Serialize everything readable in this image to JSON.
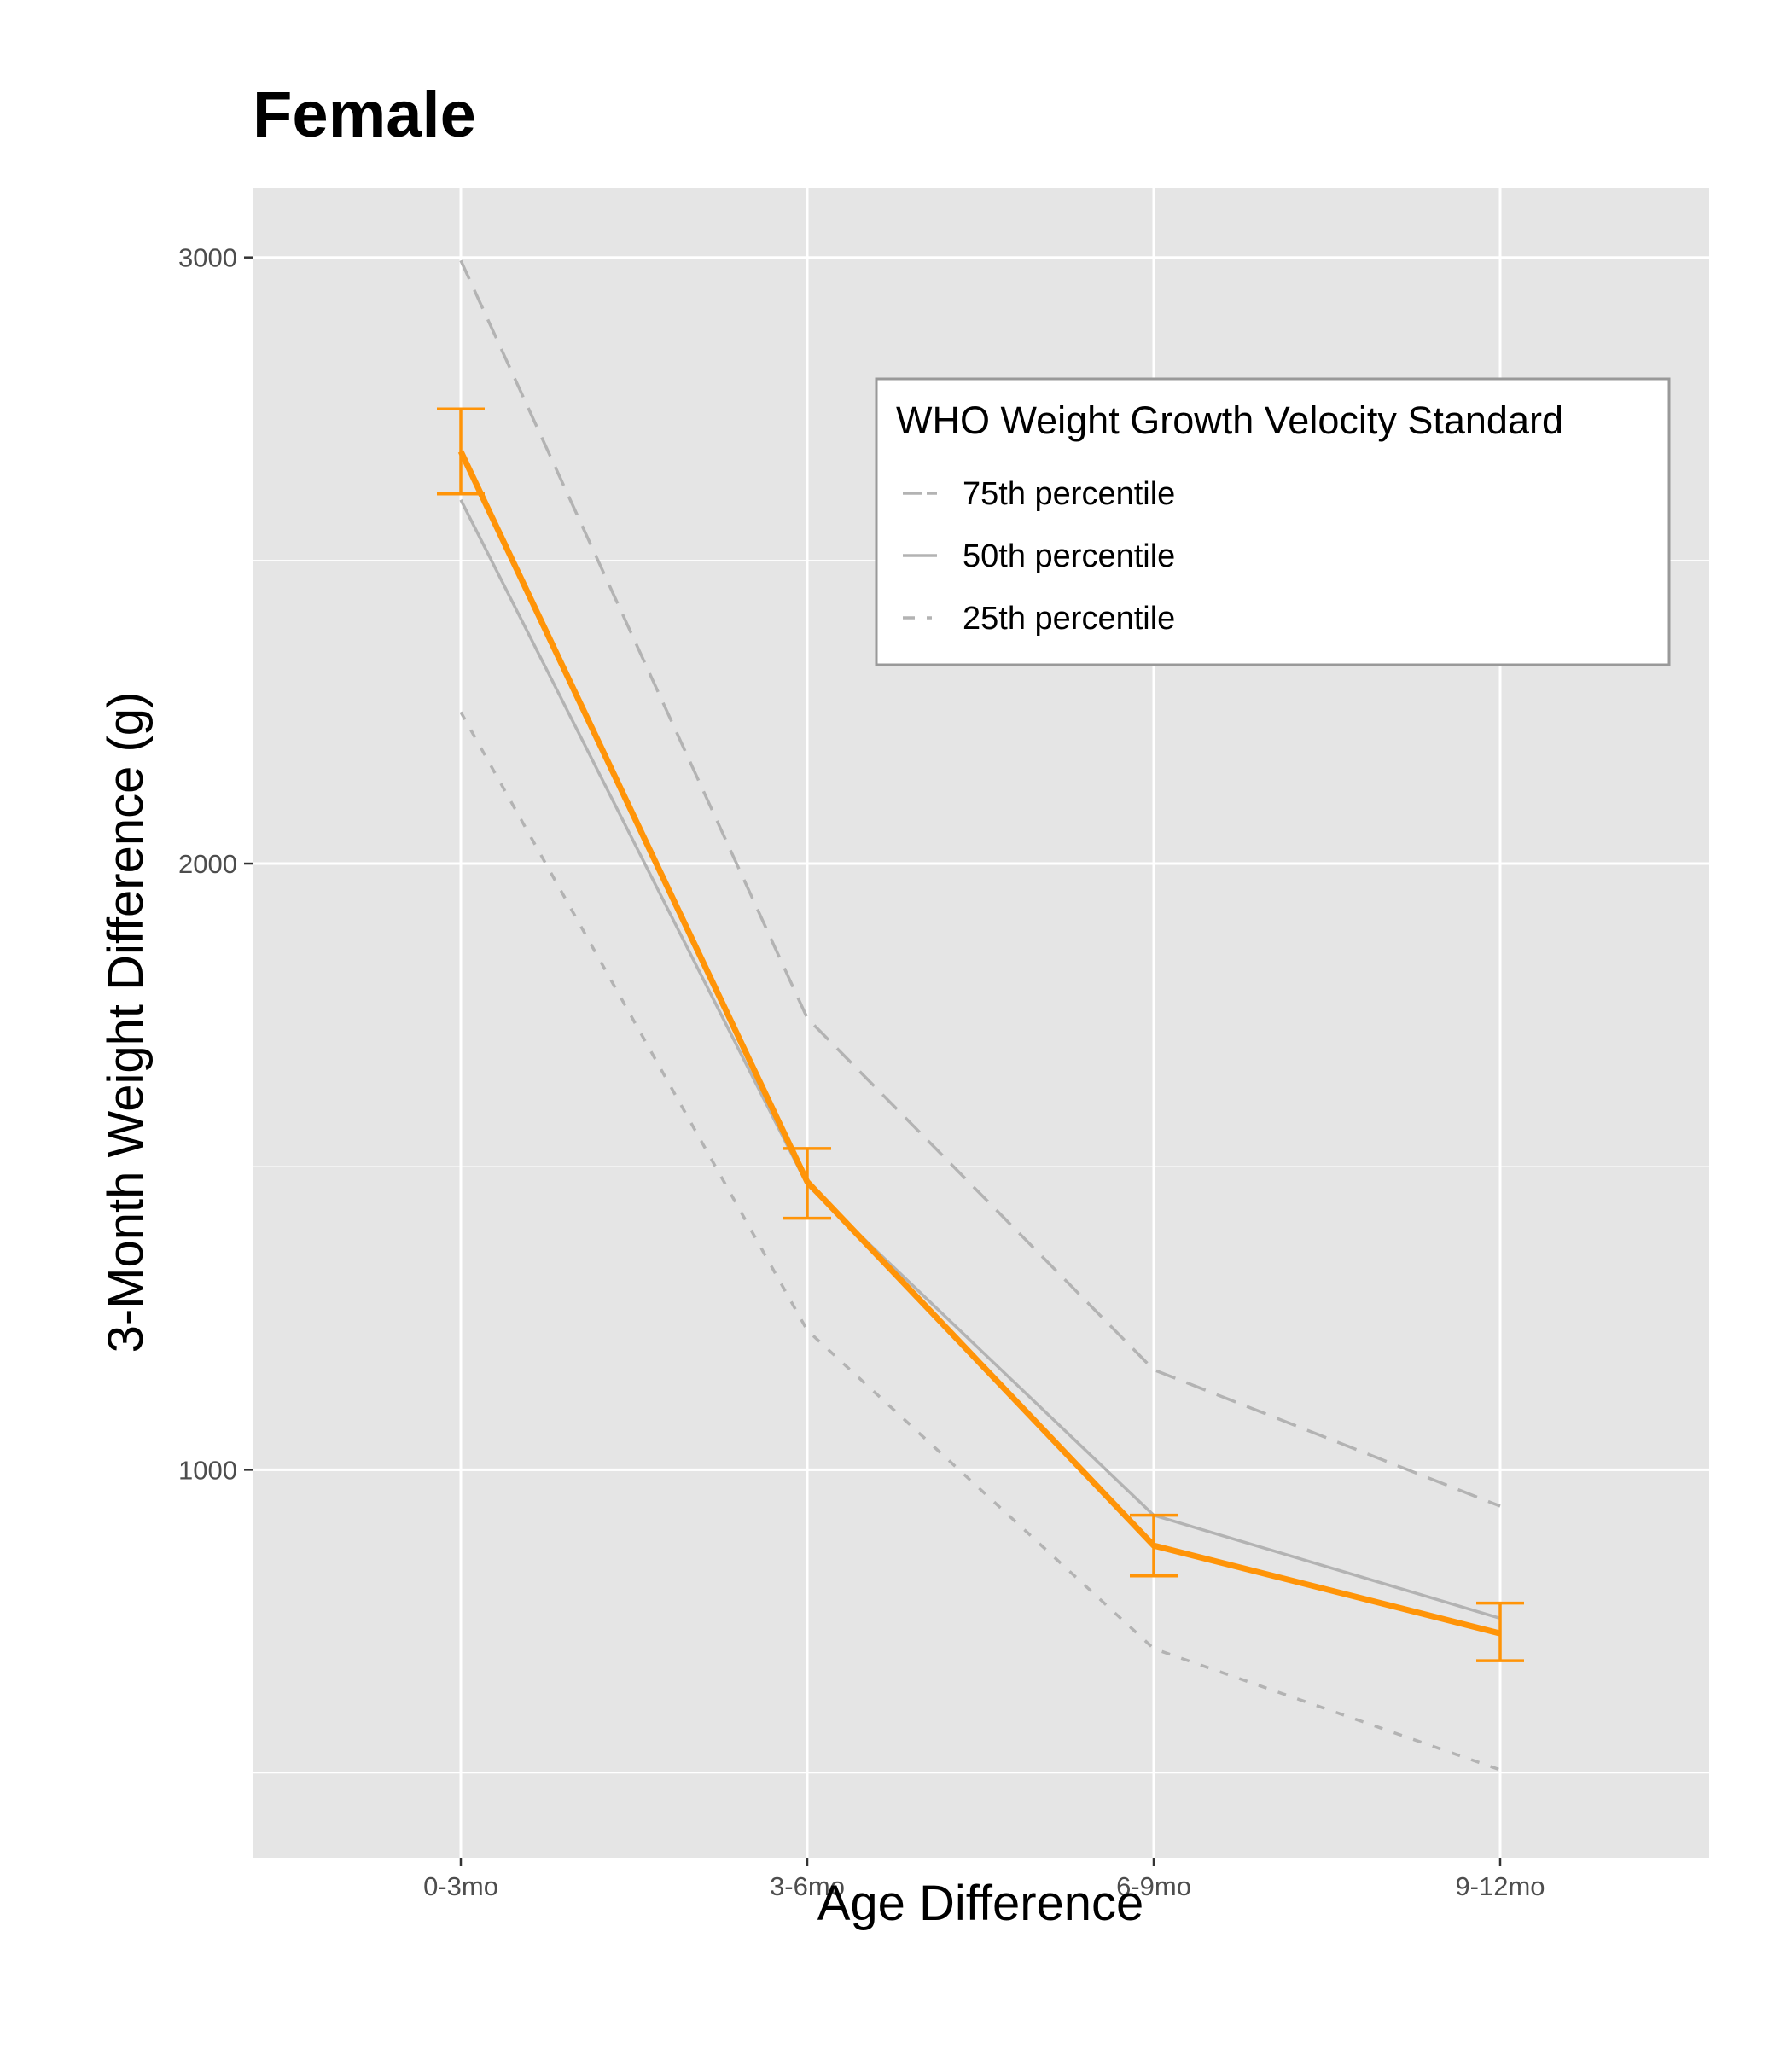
{
  "chart_data": {
    "type": "line",
    "title": "Female",
    "xlabel": "Age Difference",
    "ylabel": "3-Month Weight Difference (g)",
    "categories": [
      "0-3mo",
      "3-6mo",
      "6-9mo",
      "9-12mo"
    ],
    "ylim": [
      360,
      3115
    ],
    "yticks": [
      1000,
      2000,
      3000
    ],
    "y_tick_labels": [
      "1000",
      "2000",
      "3000"
    ],
    "grid": true,
    "legend": {
      "title": "WHO Weight Growth Velocity Standard",
      "position": "top-right",
      "entries": [
        "75th percentile",
        "50th percentile",
        "25th percentile"
      ]
    },
    "series": [
      {
        "name": "75th percentile",
        "values": [
          2995,
          1745,
          1165,
          940
        ],
        "color": "#b3b3b3",
        "style": "dashed"
      },
      {
        "name": "50th percentile",
        "values": [
          2600,
          1470,
          925,
          755
        ],
        "color": "#b3b3b3",
        "style": "solid"
      },
      {
        "name": "25th percentile",
        "values": [
          2250,
          1230,
          705,
          505
        ],
        "color": "#b3b3b3",
        "style": "dotted-dash"
      },
      {
        "values": [
          2680,
          1475,
          875,
          730
        ],
        "error_low": [
          2610,
          1415,
          825,
          685
        ],
        "error_high": [
          2750,
          1530,
          925,
          780
        ],
        "color": "#ff9408",
        "style": "solid"
      }
    ]
  }
}
